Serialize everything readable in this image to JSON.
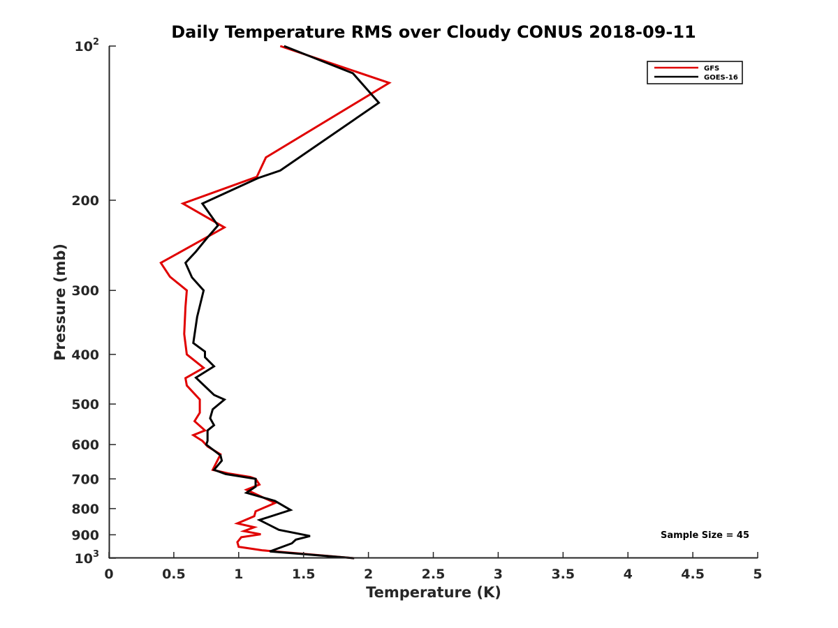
{
  "chart_data": {
    "type": "line",
    "title": "Daily Temperature RMS over Cloudy CONUS 2018-09-11",
    "xlabel": "Temperature (K)",
    "ylabel": "Pressure (mb)",
    "xlim": [
      0,
      5
    ],
    "ylim": [
      100,
      1000
    ],
    "y_scale": "log",
    "y_reversed": true,
    "grid": false,
    "legend_position": "top-right",
    "x_ticks": [
      {
        "value": 0,
        "label": "0"
      },
      {
        "value": 0.5,
        "label": "0.5"
      },
      {
        "value": 1,
        "label": "1"
      },
      {
        "value": 1.5,
        "label": "1.5"
      },
      {
        "value": 2,
        "label": "2"
      },
      {
        "value": 2.5,
        "label": "2.5"
      },
      {
        "value": 3,
        "label": "3"
      },
      {
        "value": 3.5,
        "label": "3.5"
      },
      {
        "value": 4,
        "label": "4"
      },
      {
        "value": 4.5,
        "label": "4.5"
      },
      {
        "value": 5,
        "label": "5"
      }
    ],
    "y_ticks": [
      {
        "value": 100,
        "label": "10",
        "sup": "2"
      },
      {
        "value": 200,
        "label": "200",
        "sup": ""
      },
      {
        "value": 300,
        "label": "300",
        "sup": ""
      },
      {
        "value": 400,
        "label": "400",
        "sup": ""
      },
      {
        "value": 500,
        "label": "500",
        "sup": ""
      },
      {
        "value": 600,
        "label": "600",
        "sup": ""
      },
      {
        "value": 700,
        "label": "700",
        "sup": ""
      },
      {
        "value": 800,
        "label": "800",
        "sup": ""
      },
      {
        "value": 900,
        "label": "900",
        "sup": ""
      },
      {
        "value": 1000,
        "label": "10",
        "sup": "3"
      }
    ],
    "series": [
      {
        "name": "GFS",
        "color": "#e00000",
        "points": [
          [
            1.32,
            100
          ],
          [
            2.16,
            118
          ],
          [
            1.21,
            165
          ],
          [
            1.14,
            180
          ],
          [
            0.57,
            203
          ],
          [
            0.89,
            226
          ],
          [
            0.4,
            265
          ],
          [
            0.47,
            282
          ],
          [
            0.6,
            300
          ],
          [
            0.59,
            323
          ],
          [
            0.58,
            365
          ],
          [
            0.6,
            400
          ],
          [
            0.73,
            425
          ],
          [
            0.59,
            445
          ],
          [
            0.6,
            460
          ],
          [
            0.7,
            490
          ],
          [
            0.7,
            520
          ],
          [
            0.66,
            540
          ],
          [
            0.74,
            563
          ],
          [
            0.65,
            575
          ],
          [
            0.72,
            590
          ],
          [
            0.76,
            605
          ],
          [
            0.86,
            627
          ],
          [
            0.8,
            672
          ],
          [
            0.92,
            683
          ],
          [
            1.09,
            694
          ],
          [
            1.13,
            700
          ],
          [
            1.16,
            718
          ],
          [
            1.06,
            735
          ],
          [
            1.28,
            780
          ],
          [
            1.13,
            810
          ],
          [
            1.12,
            828
          ],
          [
            0.99,
            855
          ],
          [
            1.12,
            870
          ],
          [
            1.04,
            885
          ],
          [
            1.17,
            898
          ],
          [
            1.02,
            910
          ],
          [
            0.99,
            930
          ],
          [
            1.0,
            950
          ],
          [
            1.18,
            965
          ],
          [
            1.89,
            1000
          ]
        ]
      },
      {
        "name": "GOES-16",
        "color": "#000000",
        "points": [
          [
            1.35,
            100
          ],
          [
            1.88,
            113
          ],
          [
            2.08,
            129
          ],
          [
            1.32,
            175
          ],
          [
            1.15,
            181
          ],
          [
            0.72,
            203
          ],
          [
            0.84,
            224
          ],
          [
            0.75,
            238
          ],
          [
            0.67,
            252
          ],
          [
            0.59,
            265
          ],
          [
            0.64,
            283
          ],
          [
            0.73,
            300
          ],
          [
            0.68,
            338
          ],
          [
            0.65,
            380
          ],
          [
            0.74,
            395
          ],
          [
            0.74,
            405
          ],
          [
            0.81,
            422
          ],
          [
            0.67,
            444
          ],
          [
            0.81,
            480
          ],
          [
            0.89,
            490
          ],
          [
            0.8,
            512
          ],
          [
            0.78,
            533
          ],
          [
            0.81,
            550
          ],
          [
            0.76,
            563
          ],
          [
            0.76,
            590
          ],
          [
            0.75,
            600
          ],
          [
            0.86,
            630
          ],
          [
            0.87,
            645
          ],
          [
            0.81,
            672
          ],
          [
            0.9,
            685
          ],
          [
            1.13,
            700
          ],
          [
            1.13,
            725
          ],
          [
            1.06,
            745
          ],
          [
            1.28,
            773
          ],
          [
            1.4,
            805
          ],
          [
            1.16,
            842
          ],
          [
            1.31,
            880
          ],
          [
            1.55,
            905
          ],
          [
            1.44,
            920
          ],
          [
            1.41,
            935
          ],
          [
            1.24,
            970
          ],
          [
            1.89,
            1000
          ]
        ]
      }
    ],
    "annotation": "Sample Size = 45"
  }
}
